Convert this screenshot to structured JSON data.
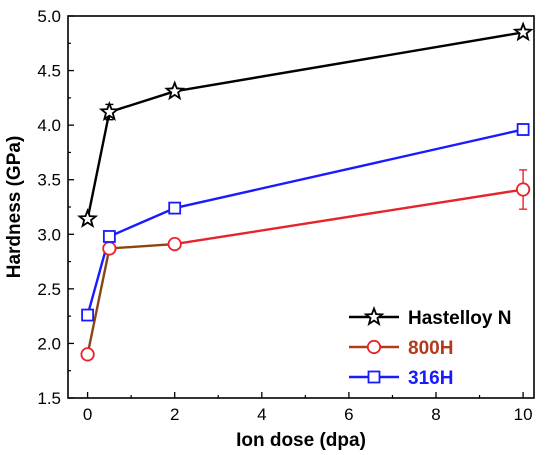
{
  "chart_data": {
    "type": "line",
    "xlabel": "Ion dose (dpa)",
    "ylabel": "Hardness (GPa)",
    "xlim": [
      -0.45,
      10.25
    ],
    "ylim": [
      1.5,
      5.0
    ],
    "xticks": [
      0,
      2,
      4,
      6,
      8,
      10
    ],
    "yticks": [
      1.5,
      2.0,
      2.5,
      3.0,
      3.5,
      4.0,
      4.5,
      5.0
    ],
    "xtick_labels": [
      "0",
      "2",
      "4",
      "6",
      "8",
      "10"
    ],
    "ytick_labels": [
      "1.5",
      "2.0",
      "2.5",
      "3.0",
      "3.5",
      "4.0",
      "4.5",
      "5.0"
    ],
    "grid": false,
    "legend_position": "bottom-right",
    "series": [
      {
        "name": "Hastelloy N",
        "color": "#000000",
        "marker": "star",
        "x": [
          0,
          0.5,
          2,
          10
        ],
        "y": [
          3.14,
          4.12,
          4.31,
          4.85
        ],
        "err": [
          0.02,
          0.07,
          0.03,
          0.02
        ]
      },
      {
        "name": "800H",
        "color": "#e8242b",
        "legend_color": "#b33a1a",
        "line_colors": [
          "#8b4513",
          "#8b4513",
          "#e8242b"
        ],
        "marker": "circle",
        "x": [
          0,
          0.5,
          2,
          10
        ],
        "y": [
          1.9,
          2.87,
          2.91,
          3.41
        ],
        "err": [
          0.04,
          0.02,
          0.02,
          0.18
        ]
      },
      {
        "name": "316H",
        "color": "#1a1aff",
        "marker": "square",
        "x": [
          0,
          0.5,
          2,
          10
        ],
        "y": [
          2.26,
          2.98,
          3.24,
          3.96
        ],
        "err": [
          0.02,
          0.02,
          0.02,
          0.05
        ]
      }
    ]
  }
}
